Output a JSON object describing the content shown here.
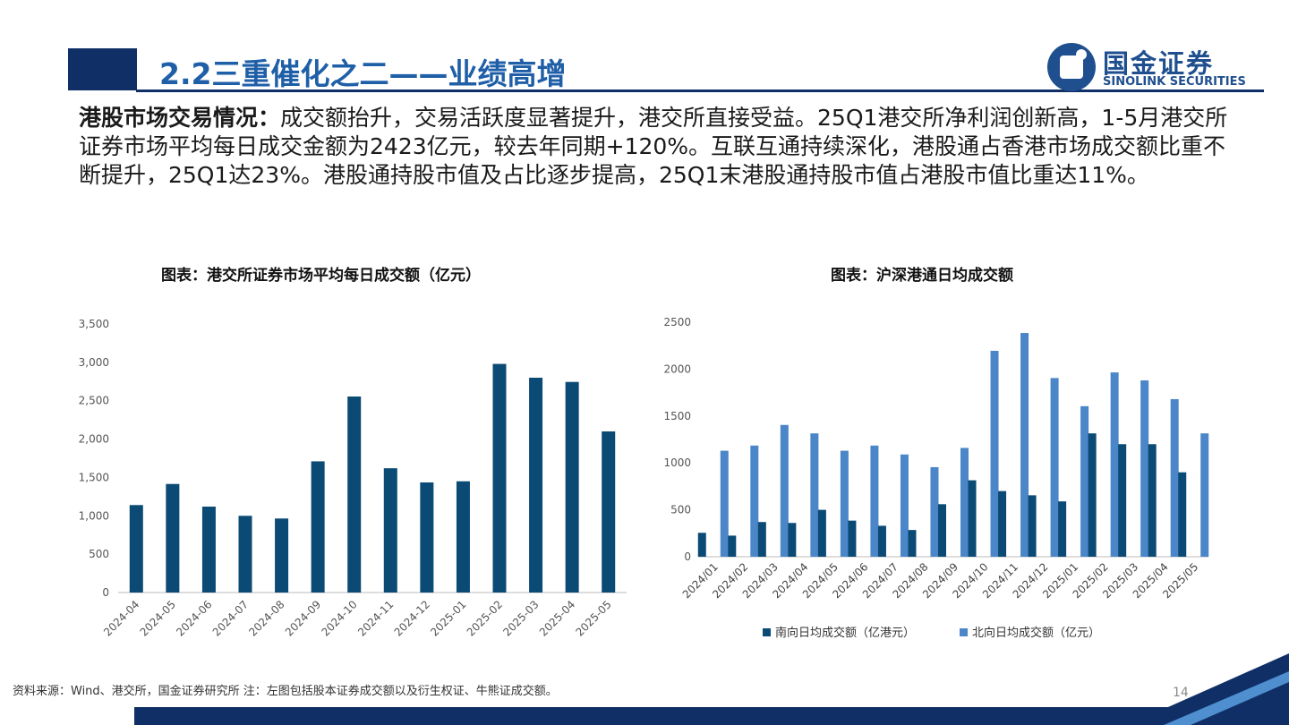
{
  "header": {
    "title": "2.2三重催化之二——业绩高增",
    "logo_cn": "国金证券",
    "logo_en": "SINOLINK SECURITIES"
  },
  "body": {
    "lead": "港股市场交易情况：",
    "text": "成交额抬升，交易活跃度显著提升，港交所直接受益。25Q1港交所净利润创新高，1-5月港交所证券市场平均每日成交金额为2423亿元，较去年同期+120%。互联互通持续深化，港股通占香港市场成交额比重不断提升，25Q1达23%。港股通持股市值及占比逐步提高，25Q1末港股通持股市值占港股市值比重达11%。"
  },
  "chart_data": [
    {
      "type": "bar",
      "title": "图表：港交所证券市场平均每日成交额（亿元）",
      "categories": [
        "2024-04",
        "2024-05",
        "2024-06",
        "2024-07",
        "2024-08",
        "2024-09",
        "2024-10",
        "2024-11",
        "2024-12",
        "2025-01",
        "2025-02",
        "2025-03",
        "2025-04",
        "2025-05"
      ],
      "values": [
        1140,
        1415,
        1120,
        1000,
        965,
        1710,
        2555,
        1620,
        1435,
        1450,
        2980,
        2800,
        2745,
        2100
      ],
      "ylim": [
        0,
        3500
      ],
      "yticks": [
        "0",
        "500",
        "1,000",
        "1,500",
        "2,000",
        "2,500",
        "3,000",
        "3,500"
      ],
      "color": "#0b4a74",
      "grid": false
    },
    {
      "type": "bar",
      "title": "图表：沪深港通日均成交额",
      "categories": [
        "2024/01",
        "2024/02",
        "2024/03",
        "2024/04",
        "2024/05",
        "2024/06",
        "2024/07",
        "2024/08",
        "2024/09",
        "2024/10",
        "2024/11",
        "2024/12",
        "2025/01",
        "2025/02",
        "2025/03",
        "2025/04",
        "2025/05"
      ],
      "series": [
        {
          "name": "南向日均成交额（亿港元）",
          "color": "#0b4a74",
          "values": [
            255,
            225,
            370,
            360,
            500,
            385,
            330,
            285,
            560,
            815,
            700,
            655,
            590,
            1315,
            1200,
            1200,
            900
          ]
        },
        {
          "name": "北向日均成交额（亿元）",
          "color": "#4a86c8",
          "values": [
            1130,
            1185,
            1405,
            1315,
            1130,
            1185,
            1090,
            955,
            1160,
            2195,
            2385,
            1905,
            1605,
            1965,
            1880,
            1680,
            1315
          ]
        }
      ],
      "ylim": [
        0,
        2500
      ],
      "yticks": [
        "0",
        "500",
        "1000",
        "1500",
        "2000",
        "2500"
      ],
      "legend": "bottom",
      "grid": false
    }
  ],
  "footer": {
    "source": "资料来源：Wind、港交所，国金证券研究所 注：左图包括股本证券成交额以及衍生权证、牛熊证成交额。",
    "page": "14"
  }
}
